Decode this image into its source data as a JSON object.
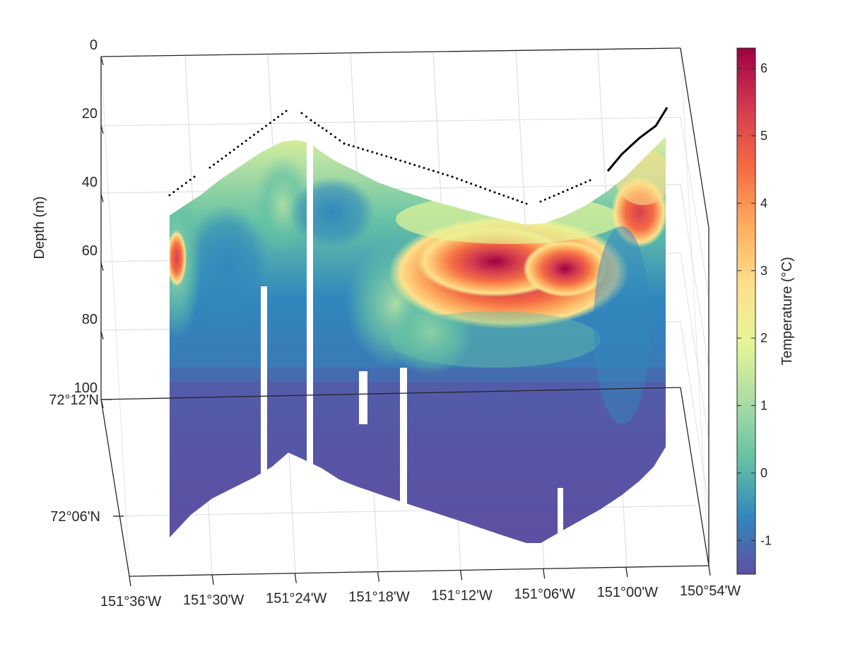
{
  "chart_data": {
    "type": "heatmap",
    "title": "",
    "zlabel": "Depth (m)",
    "colorbar_label": "Temperature (°C)",
    "x_ticks": [
      "151°36'W",
      "151°30'W",
      "151°24'W",
      "151°18'W",
      "151°12'W",
      "151°06'W",
      "151°00'W",
      "150°54'W"
    ],
    "y_ticks": [
      "72°12'N",
      "72°06'N"
    ],
    "z_ticks": [
      "0",
      "20",
      "40",
      "60",
      "80",
      "100"
    ],
    "z_range": [
      0,
      100
    ],
    "colorbar_ticks": [
      "6",
      "5",
      "4",
      "3",
      "2",
      "1",
      "0",
      "-1"
    ],
    "colorbar_range": [
      -1.5,
      6.3
    ],
    "grid": true,
    "colormap": [
      "#5e4fa2",
      "#3288bd",
      "#66c2a5",
      "#abdda4",
      "#e6f598",
      "#fee08b",
      "#fdae61",
      "#f46d43",
      "#d53e4f",
      "#9e0142"
    ],
    "features": {
      "warm_core_max_temp": 6.2,
      "warm_core_depth_range_m": [
        55,
        80
      ],
      "surface_bathymetry_dots_color": "#000000"
    }
  }
}
